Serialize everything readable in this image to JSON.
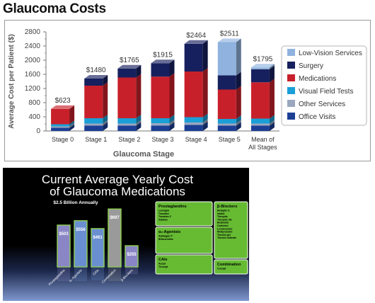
{
  "page": {
    "title": "Glaucoma Costs"
  },
  "colors": {
    "office_visits": "#1c3f95",
    "other_services": "#9aa7bf",
    "visual_field_tests": "#1a9fd6",
    "medications": "#c8202b",
    "surgery": "#17205e",
    "low_vision_services": "#8fb3de",
    "green_box": "#66bb33",
    "bar_blue": "#6a8fd0",
    "bar_purple": "#8a86c6",
    "bar_gray": "#9a9a9a"
  },
  "chart_data": [
    {
      "type": "bar",
      "stacked": true,
      "title": "",
      "xlabel": "Glaucoma Stage",
      "ylabel": "Average Cost per Patient ($)",
      "ylim": [
        0,
        2800
      ],
      "yticks": [
        "0",
        "400",
        "800",
        "1200",
        "1600",
        "2000",
        "2400",
        "2800"
      ],
      "yticks_minor": [
        "200",
        "600",
        "1000",
        "1400",
        "1800",
        "2200",
        "2600"
      ],
      "grid": false,
      "legend_position": "right",
      "categories": [
        "Stage 0",
        "Stage 1",
        "Stage 2",
        "Stage 3",
        "Stage 4",
        "Stage 5",
        "Mean of All Stages"
      ],
      "totals": [
        "$623",
        "$1480",
        "$1765",
        "$1915",
        "$2464",
        "$2511",
        "$1795"
      ],
      "series": [
        {
          "name": "Office Visits",
          "color": "#1c3f95",
          "values": [
            90,
            150,
            150,
            150,
            170,
            150,
            150
          ]
        },
        {
          "name": "Other Services",
          "color": "#9aa7bf",
          "values": [
            40,
            60,
            60,
            70,
            70,
            60,
            60
          ]
        },
        {
          "name": "Visual Field Tests",
          "color": "#1a9fd6",
          "values": [
            60,
            150,
            150,
            140,
            150,
            130,
            140
          ]
        },
        {
          "name": "Medications",
          "color": "#c8202b",
          "values": [
            433,
            920,
            1150,
            1175,
            1290,
            830,
            1025
          ]
        },
        {
          "name": "Surgery",
          "color": "#17205e",
          "values": [
            0,
            200,
            255,
            380,
            784,
            400,
            370
          ]
        },
        {
          "name": "Low-Vision Services",
          "color": "#8fb3de",
          "values": [
            0,
            0,
            0,
            0,
            0,
            941,
            50
          ]
        }
      ],
      "legend": [
        "Low-Vision Services",
        "Surgery",
        "Medications",
        "Visual Field Tests",
        "Other Services",
        "Office Visits"
      ]
    },
    {
      "type": "bar",
      "title": "Current Average Yearly Cost of Glaucoma Medications",
      "title_line1": "Current Average Yearly Cost",
      "title_line2": "of Glaucoma Medications",
      "subtitle": "$2.5 Billion Annually",
      "categories": [
        "Prostaglandins",
        "α₂-Agonists",
        "CAIs",
        "Combination",
        "β-Blockers"
      ],
      "values": [
        503,
        556,
        461,
        697,
        255
      ],
      "value_labels": [
        "$503",
        "$556",
        "$461",
        "$697",
        "$255"
      ],
      "bar_colors": [
        "#8a86c6",
        "#6a8fd0",
        "#6a8fd0",
        "#9a9a9a",
        "#8a86c6"
      ],
      "ylim": [
        0,
        750
      ],
      "groups": [
        {
          "title": "Prostaglandins",
          "items": [
            "Lumigan",
            "Travatan",
            "Travatan Z",
            "Xalatan"
          ]
        },
        {
          "title": "β-Blockers",
          "items": [
            "Betaptic S",
            "Istalol",
            "Timoptic",
            "Timoptic XE",
            "Betaxolol",
            "Carteolol",
            "Levobunolol",
            "Metipranolol",
            "Timolol gel",
            "Timolol maleate"
          ]
        },
        {
          "title": "α₂-Agonists",
          "items": [
            "Alphagan P",
            "Brimonidine"
          ]
        },
        {
          "title": "CAIs",
          "items": [
            "Azopt",
            "Trusopt"
          ]
        },
        {
          "title": "Combination",
          "items": [
            "Cosopt"
          ]
        }
      ]
    }
  ]
}
